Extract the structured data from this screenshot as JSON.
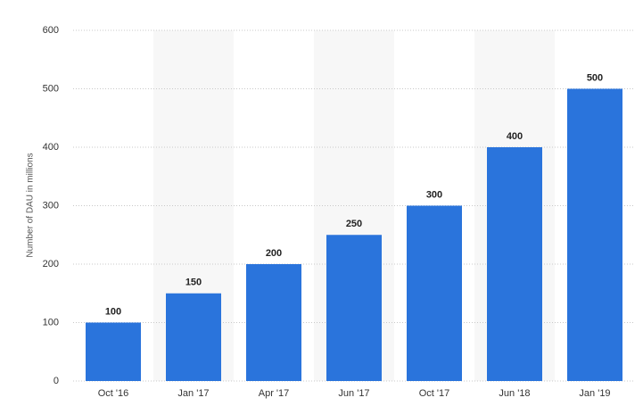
{
  "chart_data": {
    "type": "bar",
    "y_label": "Number of DAU in millions",
    "categories": [
      "Oct '16",
      "Jan '17",
      "Apr '17",
      "Jun '17",
      "Oct '17",
      "Jun '18",
      "Jan '19"
    ],
    "values": [
      100,
      150,
      200,
      250,
      300,
      400,
      500
    ],
    "color": "#2a74dc",
    "ylim": [
      0,
      600
    ],
    "yticks": [
      0,
      100,
      200,
      300,
      400,
      500,
      600
    ],
    "grid": true
  }
}
